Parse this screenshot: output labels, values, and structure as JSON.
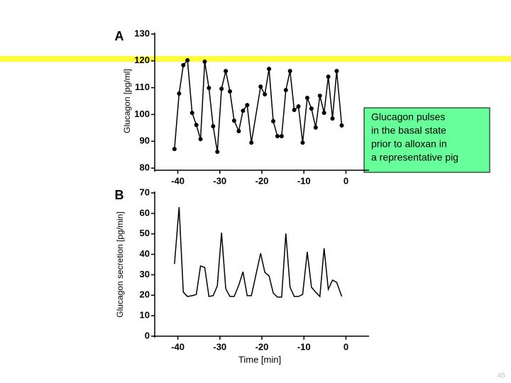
{
  "chart_data": [
    {
      "type": "line",
      "label": "A",
      "y_label": "Glucagon [pg/ml]",
      "markers": true,
      "color": "#000000",
      "x": [
        -40.8,
        -39.7,
        -38.7,
        -37.7,
        -36.6,
        -35.6,
        -34.6,
        -33.6,
        -32.6,
        -31.6,
        -30.6,
        -29.6,
        -28.6,
        -27.6,
        -26.6,
        -25.5,
        -24.5,
        -23.5,
        -22.5,
        -20.3,
        -19.3,
        -18.3,
        -17.3,
        -16.3,
        -15.3,
        -14.3,
        -13.3,
        -12.3,
        -11.3,
        -10.3,
        -9.2,
        -8.2,
        -7.2,
        -6.2,
        -5.2,
        -4.2,
        -3.2,
        -2.2,
        -1.0
      ],
      "values": [
        87.1,
        107.8,
        118.4,
        120.2,
        100.6,
        96.1,
        90.8,
        119.7,
        109.9,
        95.6,
        86.1,
        109.6,
        116.2,
        108.6,
        97.7,
        93.8,
        101.4,
        103.5,
        89.5,
        110.4,
        107.5,
        117.0,
        97.5,
        91.9,
        91.9,
        109.1,
        116.2,
        101.7,
        103.0,
        89.5,
        106.2,
        102.2,
        95.1,
        107.0,
        100.6,
        114.1,
        98.5,
        116.2,
        95.9
      ],
      "xlim": [
        -45.5,
        5.5
      ],
      "xticks": [
        -40,
        -30,
        -20,
        -10,
        0
      ],
      "ylim": [
        80,
        130
      ],
      "yticks": [
        80,
        90,
        100,
        110,
        120,
        130
      ]
    },
    {
      "type": "line",
      "label": "B",
      "x_label": "Time [min]",
      "y_label": "Glucagon secretion [pg/min]",
      "markers": false,
      "color": "#000000",
      "x": [
        -40.8,
        -39.7,
        -38.7,
        -37.7,
        -36.6,
        -35.6,
        -34.6,
        -33.6,
        -32.6,
        -31.6,
        -30.6,
        -29.6,
        -28.6,
        -27.6,
        -26.6,
        -25.5,
        -24.5,
        -23.5,
        -22.5,
        -20.3,
        -19.3,
        -18.3,
        -17.3,
        -16.3,
        -15.3,
        -14.3,
        -13.3,
        -12.3,
        -11.3,
        -10.3,
        -9.2,
        -8.2,
        -7.2,
        -6.2,
        -5.2,
        -4.2,
        -3.2,
        -2.2,
        -1.0
      ],
      "values": [
        35.3,
        63.1,
        21.5,
        19.4,
        19.8,
        20.4,
        34.3,
        33.6,
        19.4,
        19.8,
        24.6,
        50.6,
        23.2,
        19.4,
        19.4,
        24.9,
        31.5,
        19.8,
        19.8,
        40.5,
        31.2,
        29.5,
        21.1,
        19.1,
        19.1,
        50.2,
        23.9,
        19.4,
        19.4,
        20.4,
        41.2,
        23.9,
        21.5,
        19.4,
        43.0,
        22.9,
        27.4,
        26.3,
        19.4
      ],
      "xlim": [
        -45.5,
        5.5
      ],
      "xticks": [
        -40,
        -30,
        -20,
        -10,
        0
      ],
      "ylim": [
        0,
        70
      ],
      "yticks": [
        0,
        10,
        20,
        30,
        40,
        50,
        60,
        70
      ]
    }
  ],
  "note": [
    "Glucagon pulses",
    "in the basal state",
    "prior to alloxan in",
    "a representative pig"
  ],
  "page_number": "45"
}
